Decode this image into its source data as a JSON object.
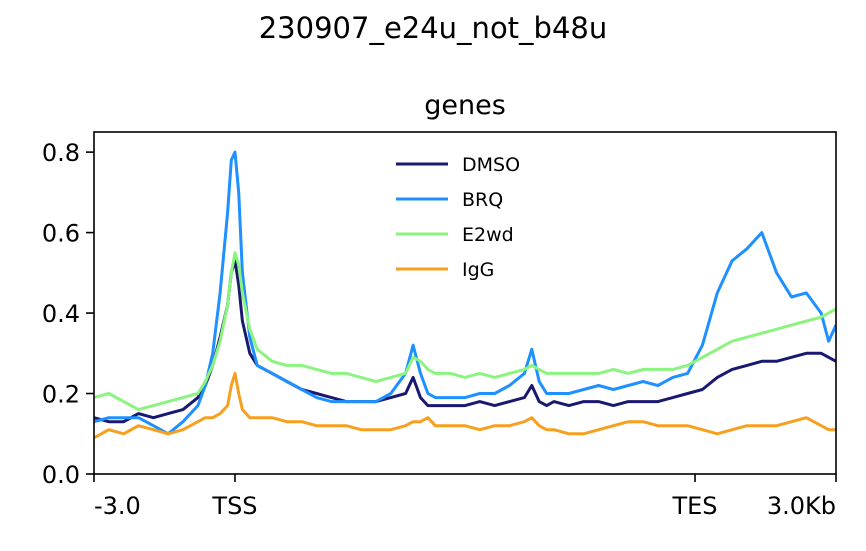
{
  "figure": {
    "suptitle": "230907_e24u_not_b48u"
  },
  "chart_data": {
    "type": "line",
    "title": "genes",
    "xlabel": "",
    "ylabel": "",
    "ylim": [
      0,
      0.85
    ],
    "yticks": [
      0.0,
      0.2,
      0.4,
      0.6,
      0.8
    ],
    "ytick_labels": [
      "0.0",
      "0.2",
      "0.4",
      "0.6",
      "0.8"
    ],
    "xlim": [
      0,
      100
    ],
    "xticks": [
      0,
      19,
      81,
      100
    ],
    "xtick_labels": [
      "-3.0",
      "TSS",
      "TES",
      "3.0Kb"
    ],
    "grid": false,
    "legend_position": "top-center",
    "x": [
      0,
      2,
      4,
      6,
      8,
      10,
      12,
      14,
      15,
      16,
      17,
      18,
      18.5,
      19,
      19.5,
      20,
      21,
      22,
      24,
      26,
      28,
      30,
      32,
      34,
      36,
      38,
      40,
      42,
      43,
      44,
      45,
      46,
      48,
      50,
      52,
      54,
      56,
      58,
      59,
      60,
      61,
      62,
      64,
      66,
      68,
      70,
      72,
      74,
      76,
      78,
      80,
      82,
      84,
      86,
      88,
      90,
      92,
      94,
      96,
      98,
      99,
      100
    ],
    "series": [
      {
        "name": "DMSO",
        "color": "#191970",
        "values": [
          0.14,
          0.13,
          0.13,
          0.15,
          0.14,
          0.15,
          0.16,
          0.19,
          0.22,
          0.27,
          0.34,
          0.42,
          0.5,
          0.53,
          0.47,
          0.38,
          0.3,
          0.27,
          0.25,
          0.23,
          0.21,
          0.2,
          0.19,
          0.18,
          0.18,
          0.18,
          0.19,
          0.2,
          0.24,
          0.19,
          0.17,
          0.17,
          0.17,
          0.17,
          0.18,
          0.17,
          0.18,
          0.19,
          0.22,
          0.18,
          0.17,
          0.18,
          0.17,
          0.18,
          0.18,
          0.17,
          0.18,
          0.18,
          0.18,
          0.19,
          0.2,
          0.21,
          0.24,
          0.26,
          0.27,
          0.28,
          0.28,
          0.29,
          0.3,
          0.3,
          0.29,
          0.28
        ]
      },
      {
        "name": "BRQ",
        "color": "#1E90FF",
        "values": [
          0.13,
          0.14,
          0.14,
          0.14,
          0.12,
          0.1,
          0.13,
          0.17,
          0.22,
          0.3,
          0.45,
          0.65,
          0.78,
          0.8,
          0.7,
          0.5,
          0.34,
          0.27,
          0.25,
          0.23,
          0.21,
          0.19,
          0.18,
          0.18,
          0.18,
          0.18,
          0.2,
          0.25,
          0.32,
          0.25,
          0.2,
          0.19,
          0.19,
          0.19,
          0.2,
          0.2,
          0.22,
          0.25,
          0.31,
          0.23,
          0.2,
          0.2,
          0.2,
          0.21,
          0.22,
          0.21,
          0.22,
          0.23,
          0.22,
          0.24,
          0.25,
          0.32,
          0.45,
          0.53,
          0.56,
          0.6,
          0.5,
          0.44,
          0.45,
          0.4,
          0.33,
          0.37
        ]
      },
      {
        "name": "E2wd",
        "color": "#8BF47E",
        "values": [
          0.19,
          0.2,
          0.18,
          0.16,
          0.17,
          0.18,
          0.19,
          0.2,
          0.23,
          0.27,
          0.33,
          0.42,
          0.5,
          0.55,
          0.52,
          0.45,
          0.36,
          0.31,
          0.28,
          0.27,
          0.27,
          0.26,
          0.25,
          0.25,
          0.24,
          0.23,
          0.24,
          0.25,
          0.29,
          0.28,
          0.26,
          0.25,
          0.25,
          0.24,
          0.25,
          0.24,
          0.25,
          0.26,
          0.27,
          0.26,
          0.25,
          0.25,
          0.25,
          0.25,
          0.25,
          0.26,
          0.25,
          0.26,
          0.26,
          0.26,
          0.27,
          0.29,
          0.31,
          0.33,
          0.34,
          0.35,
          0.36,
          0.37,
          0.38,
          0.39,
          0.4,
          0.41
        ]
      },
      {
        "name": "IgG",
        "color": "#F79F1F",
        "values": [
          0.09,
          0.11,
          0.1,
          0.12,
          0.11,
          0.1,
          0.11,
          0.13,
          0.14,
          0.14,
          0.15,
          0.17,
          0.22,
          0.25,
          0.2,
          0.16,
          0.14,
          0.14,
          0.14,
          0.13,
          0.13,
          0.12,
          0.12,
          0.12,
          0.11,
          0.11,
          0.11,
          0.12,
          0.13,
          0.13,
          0.14,
          0.12,
          0.12,
          0.12,
          0.11,
          0.12,
          0.12,
          0.13,
          0.14,
          0.12,
          0.11,
          0.11,
          0.1,
          0.1,
          0.11,
          0.12,
          0.13,
          0.13,
          0.12,
          0.12,
          0.12,
          0.11,
          0.1,
          0.11,
          0.12,
          0.12,
          0.12,
          0.13,
          0.14,
          0.12,
          0.11,
          0.11
        ]
      }
    ]
  }
}
